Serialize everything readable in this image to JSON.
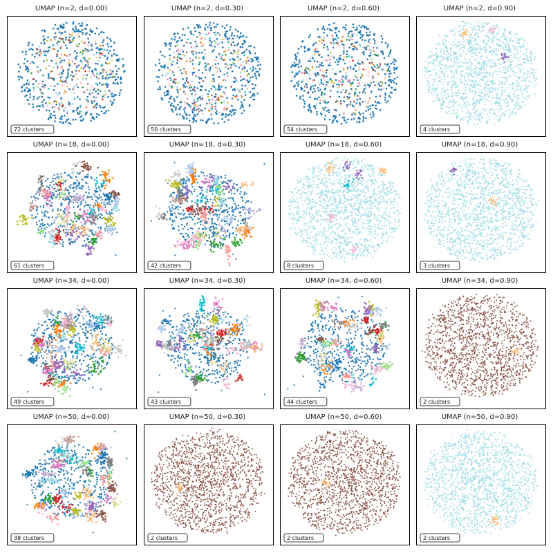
{
  "figure": {
    "rows": 4,
    "cols": 4
  },
  "chart_data": [
    {
      "type": "scatter",
      "title": "UMAP (n=2, d=0.00)",
      "n_neighbors": 2,
      "min_dist": 0.0,
      "clusters_label": "72 clusters",
      "n_clusters": 72,
      "dominant_color": "#1f77b4",
      "spread": "uniform-fragmented"
    },
    {
      "type": "scatter",
      "title": "UMAP (n=2, d=0.30)",
      "n_neighbors": 2,
      "min_dist": 0.3,
      "clusters_label": "50 clusters",
      "n_clusters": 50,
      "dominant_color": "#1f77b4",
      "spread": "uniform-fragmented"
    },
    {
      "type": "scatter",
      "title": "UMAP (n=2, d=0.60)",
      "n_neighbors": 2,
      "min_dist": 0.6,
      "clusters_label": "54 clusters",
      "n_clusters": 54,
      "dominant_color": "#1f77b4",
      "spread": "uniform-fragmented"
    },
    {
      "type": "scatter",
      "title": "UMAP (n=2, d=0.90)",
      "n_neighbors": 2,
      "min_dist": 0.9,
      "clusters_label": "4 clusters",
      "n_clusters": 4,
      "dominant_color": "#9edae5",
      "spread": "single-blob"
    },
    {
      "type": "scatter",
      "title": "UMAP (n=18, d=0.00)",
      "n_neighbors": 18,
      "min_dist": 0.0,
      "clusters_label": "61 clusters",
      "n_clusters": 61,
      "dominant_color": "#1f77b4",
      "spread": "many-tight"
    },
    {
      "type": "scatter",
      "title": "UMAP (n=18, d=0.30)",
      "n_neighbors": 18,
      "min_dist": 0.3,
      "clusters_label": "42 clusters",
      "n_clusters": 42,
      "dominant_color": "#1f77b4",
      "spread": "many-tight"
    },
    {
      "type": "scatter",
      "title": "UMAP (n=18, d=0.60)",
      "n_neighbors": 18,
      "min_dist": 0.6,
      "clusters_label": "8 clusters",
      "n_clusters": 8,
      "dominant_color": "#9edae5",
      "spread": "single-blob"
    },
    {
      "type": "scatter",
      "title": "UMAP (n=18, d=0.90)",
      "n_neighbors": 18,
      "min_dist": 0.9,
      "clusters_label": "3 clusters",
      "n_clusters": 3,
      "dominant_color": "#9edae5",
      "spread": "single-blob"
    },
    {
      "type": "scatter",
      "title": "UMAP (n=34, d=0.00)",
      "n_neighbors": 34,
      "min_dist": 0.0,
      "clusters_label": "49 clusters",
      "n_clusters": 49,
      "dominant_color": "#1f77b4",
      "spread": "many-tight"
    },
    {
      "type": "scatter",
      "title": "UMAP (n=34, d=0.30)",
      "n_neighbors": 34,
      "min_dist": 0.3,
      "clusters_label": "43 clusters",
      "n_clusters": 43,
      "dominant_color": "#1f77b4",
      "spread": "many-tight"
    },
    {
      "type": "scatter",
      "title": "UMAP (n=34, d=0.60)",
      "n_neighbors": 34,
      "min_dist": 0.6,
      "clusters_label": "44 clusters",
      "n_clusters": 44,
      "dominant_color": "#1f77b4",
      "spread": "many-tight"
    },
    {
      "type": "scatter",
      "title": "UMAP (n=34, d=0.90)",
      "n_neighbors": 34,
      "min_dist": 0.9,
      "clusters_label": "2 clusters",
      "n_clusters": 2,
      "dominant_color": "#8c564b",
      "spread": "single-blob"
    },
    {
      "type": "scatter",
      "title": "UMAP (n=50, d=0.00)",
      "n_neighbors": 50,
      "min_dist": 0.0,
      "clusters_label": "38 clusters",
      "n_clusters": 38,
      "dominant_color": "#1f77b4",
      "spread": "many-tight"
    },
    {
      "type": "scatter",
      "title": "UMAP (n=50, d=0.30)",
      "n_neighbors": 50,
      "min_dist": 0.3,
      "clusters_label": "2 clusters",
      "n_clusters": 2,
      "dominant_color": "#8c564b",
      "spread": "single-blob"
    },
    {
      "type": "scatter",
      "title": "UMAP (n=50, d=0.60)",
      "n_neighbors": 50,
      "min_dist": 0.6,
      "clusters_label": "2 clusters",
      "n_clusters": 2,
      "dominant_color": "#8c564b",
      "spread": "single-blob"
    },
    {
      "type": "scatter",
      "title": "UMAP (n=50, d=0.90)",
      "n_neighbors": 50,
      "min_dist": 0.9,
      "clusters_label": "2 clusters",
      "n_clusters": 2,
      "dominant_color": "#9edae5",
      "spread": "single-blob"
    }
  ],
  "palette": [
    "#1f77b4",
    "#aec7e8",
    "#ff7f0e",
    "#ffbb78",
    "#2ca02c",
    "#98df8a",
    "#d62728",
    "#ff9896",
    "#9467bd",
    "#c5b0d5",
    "#8c564b",
    "#c49c94",
    "#e377c2",
    "#f7b6d2",
    "#7f7f7f",
    "#c7c7c7",
    "#bcbd22",
    "#dbdb8d",
    "#17becf",
    "#9edae5"
  ]
}
